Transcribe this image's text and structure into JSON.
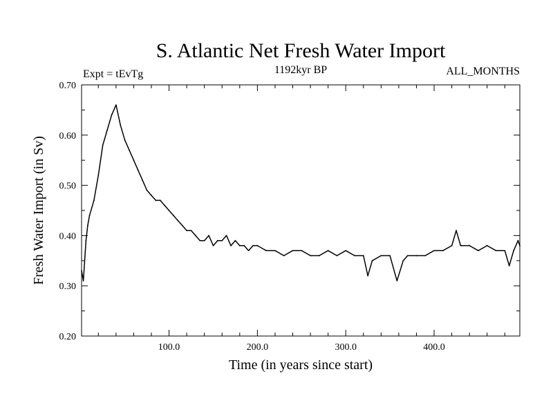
{
  "chart_data": {
    "type": "line",
    "title": "S. Atlantic Net Fresh Water Import",
    "subtitle_left": "Expt = tEvTg",
    "subtitle_center": "1192kyr BP",
    "subtitle_right": "ALL_MONTHS",
    "xlabel": "Time (in years since start)",
    "ylabel": "Fresh Water Import (in Sv)",
    "xlim": [
      1,
      497
    ],
    "ylim": [
      0.2,
      0.7
    ],
    "xticks": [
      100,
      200,
      300,
      400
    ],
    "xtick_labels": [
      "100.0",
      "200.0",
      "300.0",
      "400.0"
    ],
    "yticks": [
      0.2,
      0.3,
      0.4,
      0.5,
      0.6,
      0.7
    ],
    "ytick_labels": [
      "0.20",
      "0.30",
      "0.40",
      "0.50",
      "0.60",
      "0.70"
    ],
    "grid": false,
    "series": [
      {
        "name": "fresh_water_import",
        "color": "#000000",
        "x": [
          1,
          3,
          6,
          8,
          10,
          15,
          20,
          25,
          30,
          35,
          40,
          45,
          50,
          55,
          60,
          65,
          70,
          75,
          80,
          85,
          90,
          95,
          100,
          105,
          110,
          115,
          120,
          125,
          130,
          135,
          140,
          145,
          150,
          155,
          160,
          165,
          170,
          175,
          180,
          185,
          190,
          195,
          200,
          210,
          220,
          230,
          240,
          250,
          260,
          270,
          280,
          290,
          300,
          310,
          320,
          325,
          330,
          340,
          350,
          358,
          365,
          370,
          380,
          390,
          400,
          410,
          420,
          425,
          430,
          440,
          450,
          460,
          470,
          480,
          485,
          490,
          495,
          497
        ],
        "values": [
          0.33,
          0.31,
          0.39,
          0.42,
          0.44,
          0.47,
          0.52,
          0.58,
          0.61,
          0.64,
          0.66,
          0.62,
          0.59,
          0.57,
          0.55,
          0.53,
          0.51,
          0.49,
          0.48,
          0.47,
          0.47,
          0.46,
          0.45,
          0.44,
          0.43,
          0.42,
          0.41,
          0.41,
          0.4,
          0.39,
          0.39,
          0.4,
          0.38,
          0.39,
          0.39,
          0.4,
          0.38,
          0.39,
          0.38,
          0.38,
          0.37,
          0.38,
          0.38,
          0.37,
          0.37,
          0.36,
          0.37,
          0.37,
          0.36,
          0.36,
          0.37,
          0.36,
          0.37,
          0.36,
          0.36,
          0.32,
          0.35,
          0.36,
          0.36,
          0.31,
          0.35,
          0.36,
          0.36,
          0.36,
          0.37,
          0.37,
          0.38,
          0.41,
          0.38,
          0.38,
          0.37,
          0.38,
          0.37,
          0.37,
          0.34,
          0.37,
          0.39,
          0.38
        ]
      }
    ]
  }
}
